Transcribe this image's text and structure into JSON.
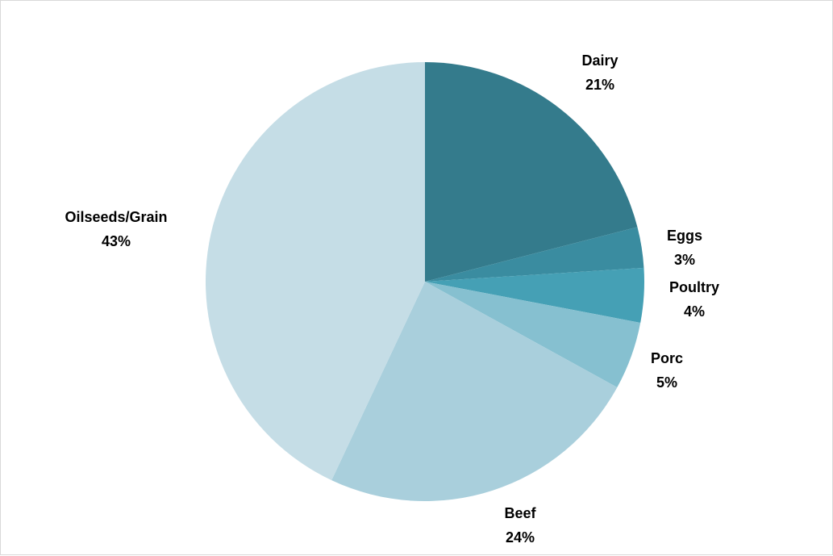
{
  "chart_data": {
    "type": "pie",
    "title": "",
    "categories": [
      "Dairy",
      "Eggs",
      "Poultry",
      "Porc",
      "Beef",
      "Oilseeds/Grain"
    ],
    "values": [
      21,
      3,
      4,
      5,
      24,
      43
    ],
    "value_labels": [
      "21%",
      "3%",
      "4%",
      "5%",
      "24%",
      "43%"
    ],
    "colors": [
      "#347b8c",
      "#3a8ca0",
      "#45a0b5",
      "#86c0d0",
      "#a9cfdc",
      "#c5dde6"
    ],
    "start_angle": "12 o'clock",
    "direction": "clockwise",
    "legend": "none",
    "labels_position": "outside"
  }
}
